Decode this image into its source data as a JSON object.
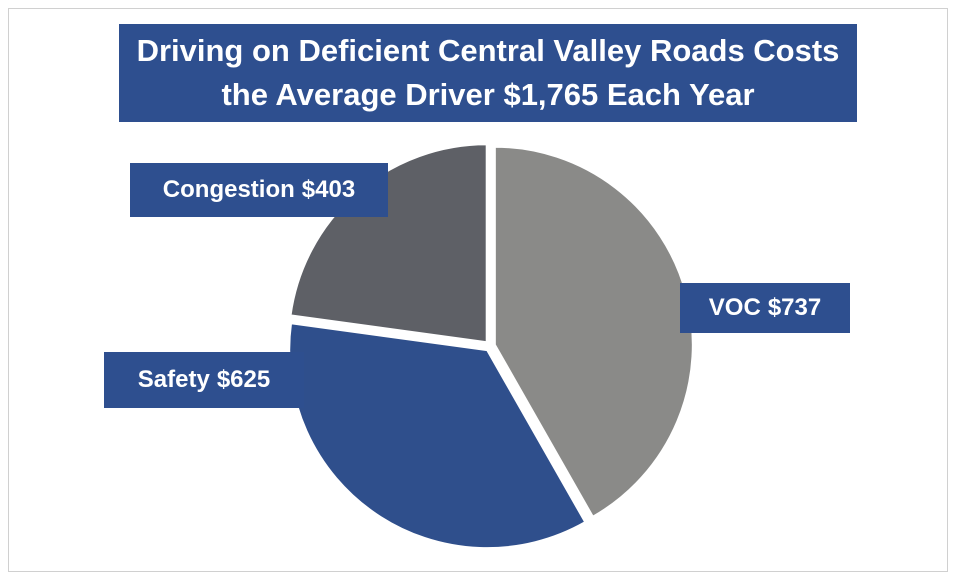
{
  "chart_data": {
    "type": "pie",
    "title": "Driving on Deficient Central Valley Roads Costs the Average Driver $1,765 Each Year",
    "categories": [
      "VOC",
      "Safety",
      "Congestion"
    ],
    "values": [
      737,
      625,
      403
    ],
    "value_labels": [
      "$737",
      "$625",
      "$403"
    ],
    "colors": [
      "#8a8a88",
      "#2f4f8c",
      "#5e6066"
    ]
  }
}
